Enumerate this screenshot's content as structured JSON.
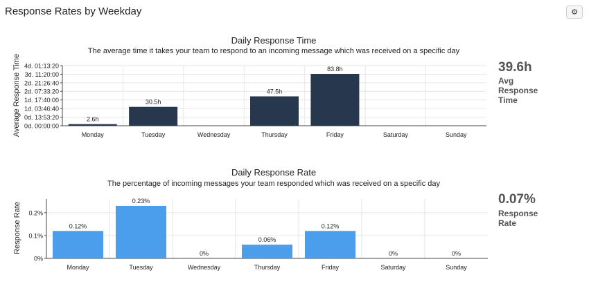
{
  "header": {
    "title": "Response Rates by Weekday",
    "settings_icon": "gear-icon",
    "settings_glyph": "⚙"
  },
  "chart_data": [
    {
      "type": "bar",
      "title": "Daily Response Time",
      "subtitle": "The average time it takes your team to respond to an incoming message which was received on a specific day",
      "ylabel": "Average Response Time",
      "xlabel": "",
      "unit": "hours",
      "categories": [
        "Monday",
        "Tuesday",
        "Wednesday",
        "Thursday",
        "Friday",
        "Saturday",
        "Sunday"
      ],
      "values": [
        2.6,
        30.5,
        0,
        47.5,
        83.8,
        0,
        0
      ],
      "data_labels": [
        "2.6h",
        "30.5h",
        "",
        "47.5h",
        "83.8h",
        "",
        ""
      ],
      "yticks": [
        0,
        13.9,
        27.8,
        41.7,
        55.6,
        69.4,
        83.3,
        97.2
      ],
      "ytick_labels": [
        "0d. 00:00:00",
        "0d. 13:53:20",
        "1d. 03:46:40",
        "1d. 17:40:00",
        "2d. 07:33:20",
        "2d. 21:26:40",
        "3d. 11:20:00",
        "4d. 01:13:20"
      ],
      "ylim": [
        0,
        97.2
      ],
      "bar_color": "#27374e",
      "grid": true,
      "summary": {
        "value": "39.6h",
        "label": "Avg Response Time"
      }
    },
    {
      "type": "bar",
      "title": "Daily Response Rate",
      "subtitle": "The percentage of incoming messages your team responded which was received on a specific day",
      "ylabel": "Response Rate",
      "xlabel": "",
      "unit": "percent",
      "categories": [
        "Monday",
        "Tuesday",
        "Wednesday",
        "Thursday",
        "Friday",
        "Saturday",
        "Sunday"
      ],
      "values": [
        0.12,
        0.23,
        0,
        0.06,
        0.12,
        0,
        0
      ],
      "data_labels": [
        "0.12%",
        "0.23%",
        "0%",
        "0.06%",
        "0.12%",
        "0%",
        "0%"
      ],
      "yticks": [
        0,
        0.1,
        0.2
      ],
      "ytick_labels": [
        "0%",
        "0.1%",
        "0.2%"
      ],
      "ylim": [
        0,
        0.26
      ],
      "bar_color": "#4a9eeb",
      "grid": true,
      "summary": {
        "value": "0.07%",
        "label": "Response Rate"
      }
    }
  ]
}
